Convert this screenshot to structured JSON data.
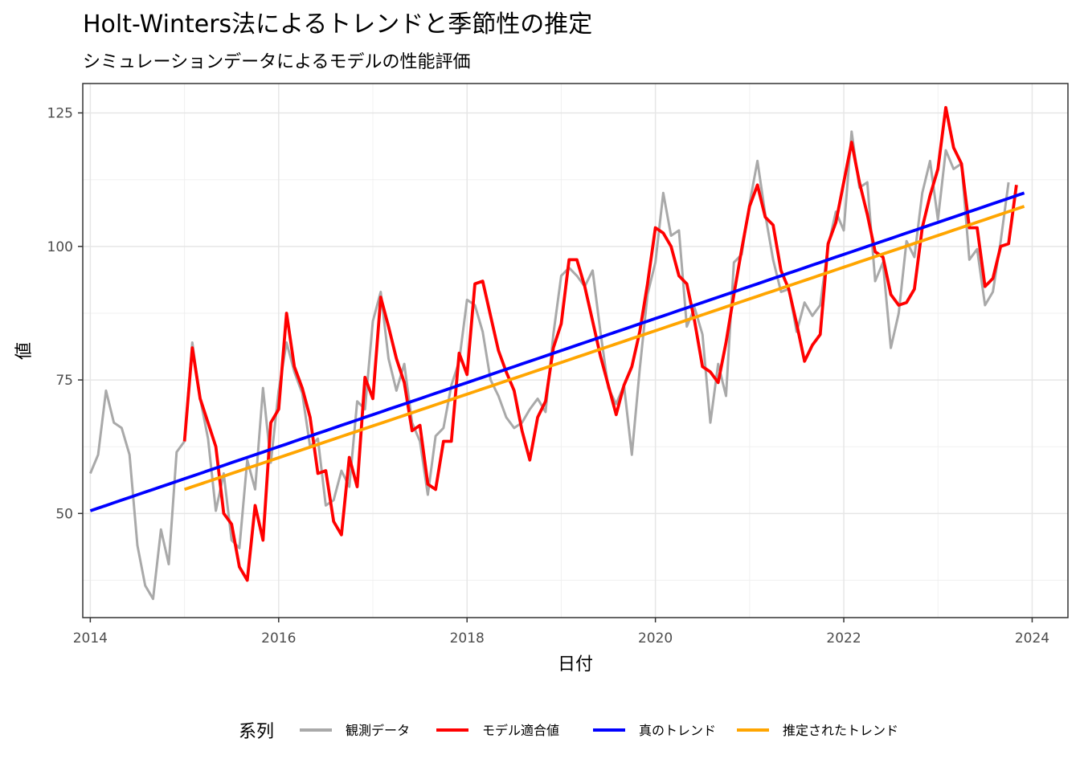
{
  "chart_data": {
    "type": "line",
    "title": "Holt-Winters法によるトレンドと季節性の推定",
    "subtitle": "シミュレーションデータによるモデルの性能評価",
    "xlabel": "日付",
    "ylabel": "値",
    "xlim": [
      2013.92,
      2024.38
    ],
    "ylim": [
      30.5,
      130.5
    ],
    "x_ticks": [
      2014,
      2016,
      2018,
      2020,
      2022,
      2024
    ],
    "y_ticks": [
      50,
      75,
      100,
      125
    ],
    "grid": true,
    "legend_title": "系列",
    "legend_position": "bottom",
    "x_start": 2014,
    "x_step": 0.08333,
    "series": [
      {
        "name": "観測データ",
        "color": "#a9a9a9",
        "offset": 0,
        "values": [
          57.5,
          61.0,
          73.0,
          67.0,
          66.0,
          61.0,
          44.0,
          36.5,
          34.0,
          47.0,
          40.5,
          61.5,
          63.5,
          82.0,
          71.5,
          64.0,
          50.5,
          57.5,
          45.0,
          43.5,
          60.0,
          54.5,
          73.5,
          59.5,
          73.0,
          82.0,
          76.5,
          72.5,
          62.5,
          64.0,
          51.5,
          52.5,
          58.0,
          55.0,
          71.0,
          69.5,
          86.0,
          91.5,
          79.0,
          73.0,
          78.0,
          67.0,
          63.5,
          53.5,
          64.5,
          66.0,
          74.0,
          78.5,
          90.0,
          89.0,
          84.0,
          75.0,
          72.0,
          68.0,
          66.0,
          67.0,
          69.5,
          71.5,
          69.0,
          83.5,
          94.5,
          96.0,
          94.5,
          92.5,
          95.5,
          84.0,
          73.5,
          70.5,
          74.0,
          61.0,
          77.0,
          91.0,
          97.0,
          110.0,
          102.0,
          103.0,
          85.0,
          88.5,
          83.5,
          67.0,
          78.0,
          72.0,
          97.0,
          98.5,
          108.0,
          116.0,
          106.0,
          97.5,
          91.5,
          92.0,
          84.0,
          89.5,
          87.0,
          89.0,
          100.0,
          106.5,
          103.0,
          121.5,
          111.0,
          112.0,
          93.5,
          97.0,
          81.0,
          87.5,
          101.0,
          98.0,
          110.0,
          116.0,
          105.0,
          118.0,
          114.5,
          115.5,
          97.5,
          99.5,
          89.0,
          91.5,
          101.0,
          112.0
        ]
      },
      {
        "name": "モデル適合値",
        "color": "#ff0000",
        "offset": 12,
        "values": [
          63.5,
          81.0,
          71.5,
          67.0,
          62.5,
          50.0,
          48.0,
          40.0,
          37.5,
          51.5,
          45.0,
          67.0,
          69.5,
          87.5,
          77.5,
          73.5,
          68.0,
          57.5,
          58.0,
          48.5,
          46.0,
          60.5,
          55.0,
          75.5,
          71.5,
          90.5,
          85.0,
          79.0,
          74.5,
          65.5,
          66.5,
          55.5,
          54.5,
          63.5,
          63.5,
          80.0,
          76.0,
          93.0,
          93.5,
          87.0,
          80.5,
          76.5,
          73.0,
          65.5,
          60.0,
          68.0,
          71.0,
          81.0,
          85.5,
          97.5,
          97.5,
          92.5,
          86.0,
          79.5,
          74.0,
          68.5,
          74.0,
          77.5,
          84.0,
          93.0,
          103.5,
          102.5,
          100.0,
          94.5,
          93.0,
          86.0,
          77.5,
          76.5,
          74.5,
          82.0,
          91.0,
          99.5,
          107.5,
          111.5,
          105.5,
          104.0,
          95.5,
          92.0,
          85.5,
          78.5,
          81.5,
          83.5,
          100.5,
          104.5,
          112.0,
          119.5,
          112.0,
          106.0,
          99.0,
          98.0,
          91.0,
          89.0,
          89.5,
          92.0,
          103.5,
          109.5,
          114.5,
          126.0,
          118.5,
          115.5,
          103.5,
          103.5,
          92.5,
          94.0,
          100.0,
          100.5,
          111.5
        ]
      },
      {
        "name": "真のトレンド",
        "color": "#0000ff",
        "offset": 0,
        "from": 50.5,
        "to": 110.0,
        "count": 120
      },
      {
        "name": "推定されたトレンド",
        "color": "#ffa500",
        "offset": 12,
        "from": 54.5,
        "to": 107.5,
        "count": 108
      }
    ]
  }
}
